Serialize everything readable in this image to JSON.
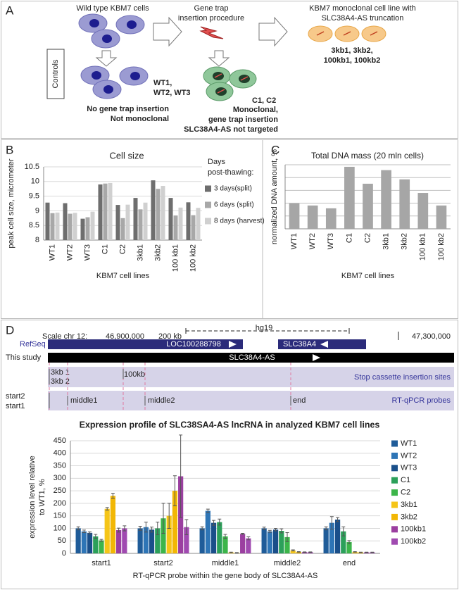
{
  "panel_labels": [
    "A",
    "B",
    "C",
    "D"
  ],
  "diagram": {
    "wild_type": "Wild type KBM7 cells",
    "procedure": [
      "Gene trap",
      "insertion procedure"
    ],
    "truncation": [
      "KBM7 monoclonal cell line with",
      "SLC38A4-AS truncation"
    ],
    "truncation_lines": [
      "3kb1, 3kb2,",
      "100kb1, 100kb2"
    ],
    "controls": "Controls",
    "wt_lines": [
      "WT1,",
      "WT2, WT3"
    ],
    "wt_note": [
      "No gene trap insertion",
      "Not monoclonal"
    ],
    "c_lines": "C1, C2",
    "c_note": [
      "Monoclonal,",
      "gene trap insertion",
      "SLC38A4-AS not targeted"
    ]
  },
  "tracks": {
    "scale": "Scale chr 12:",
    "pos1": "46,900,000",
    "kb": "200 kb",
    "assembly": "hg19",
    "pos2": "47,300,000",
    "refseq": "RefSeq",
    "gene1": "LOC100288798",
    "gene2": "SLC38A4",
    "study": "This study",
    "transcript": "SLC38A4-AS",
    "sites": [
      "3kb 1",
      "3kb 2",
      "100kb"
    ],
    "sites_label": "Stop cassette insertion sites",
    "probes": [
      "start2",
      "start1",
      "middle1",
      "middle2",
      "end"
    ],
    "probes_label": "RT-qPCR probes"
  },
  "chart_data": [
    {
      "type": "bar",
      "title": "Cell size",
      "ylabel": "peak cell size, micrometer",
      "xlabel": "KBM7 cell lines",
      "categories": [
        "WT1",
        "WT2",
        "WT3",
        "C1",
        "C2",
        "3kb1",
        "3kb2",
        "100 kb1",
        "100 kb2"
      ],
      "legend_title": [
        "Days",
        "post-thawing:"
      ],
      "legend": "right",
      "series": [
        {
          "name": "3 days(split)",
          "color": "#6e6e6e",
          "values": [
            9.28,
            9.26,
            8.73,
            9.9,
            9.2,
            9.44,
            10.04,
            9.44,
            9.29
          ]
        },
        {
          "name": "6 days (split)",
          "color": "#a8a8a8",
          "values": [
            8.92,
            8.9,
            8.78,
            9.93,
            8.75,
            9.05,
            9.75,
            8.84,
            8.85
          ]
        },
        {
          "name": "8 days (harvest)",
          "color": "#d0d0d0",
          "values": [
            8.94,
            8.93,
            8.97,
            9.95,
            9.21,
            9.28,
            9.85,
            9.11,
            9.1
          ]
        }
      ],
      "ylim": [
        8,
        10.5
      ],
      "yticks": [
        8,
        8.5,
        9,
        9.5,
        10,
        10.5
      ],
      "grid": true
    },
    {
      "type": "bar",
      "title": "Total DNA mass (20 mln cells)",
      "ylabel": "normalized DNA amount, %",
      "xlabel": "KBM7 cell lines",
      "categories": [
        "WT1",
        "WT2",
        "WT3",
        "C1",
        "C2",
        "3kb1",
        "3kb2",
        "100 kb1",
        "100 kb2"
      ],
      "values": [
        100,
        91,
        80,
        242,
        176,
        229,
        193,
        140,
        91
      ],
      "color": "#a6a6a6",
      "ylim": [
        0,
        250
      ],
      "ygrid": [
        50,
        100,
        150,
        200,
        250
      ],
      "grid": true
    },
    {
      "type": "bar",
      "title": "Expression profile of SLC38SA4-AS lncRNA in analyzed KBM7 cell lines",
      "ylabel": [
        "expression level relative",
        "to WT1, %"
      ],
      "xlabel": "RT-qPCR probe within the gene body of SLC38A4-AS",
      "categories": [
        "start1",
        "start2",
        "middle1",
        "middle2",
        "end"
      ],
      "legend": "right",
      "series": [
        {
          "name": "WT1",
          "color": "#1f5c99",
          "values": [
            100,
            100,
            100,
            100,
            100
          ],
          "errors": [
            6,
            8,
            6,
            5,
            6
          ]
        },
        {
          "name": "WT2",
          "color": "#2e75b6",
          "values": [
            88,
            105,
            170,
            88,
            122
          ],
          "errors": [
            5,
            20,
            7,
            4,
            25
          ]
        },
        {
          "name": "WT3",
          "color": "#1a4f8a",
          "values": [
            82,
            95,
            122,
            95,
            135
          ],
          "errors": [
            4,
            10,
            10,
            5,
            8
          ]
        },
        {
          "name": "C1",
          "color": "#2ca05a",
          "values": [
            68,
            100,
            125,
            90,
            88
          ],
          "errors": [
            8,
            25,
            12,
            8,
            18
          ]
        },
        {
          "name": "C2",
          "color": "#3cb54a",
          "values": [
            52,
            140,
            68,
            65,
            45
          ],
          "errors": [
            4,
            60,
            8,
            18,
            6
          ]
        },
        {
          "name": "3kb1",
          "color": "#f5c518",
          "values": [
            178,
            150,
            4,
            12,
            6
          ],
          "errors": [
            5,
            50,
            1,
            2,
            1
          ]
        },
        {
          "name": "3kb2",
          "color": "#f2b705",
          "values": [
            230,
            250,
            2,
            6,
            4
          ],
          "errors": [
            10,
            60,
            1,
            1,
            1
          ]
        },
        {
          "name": "100kb1",
          "color": "#9b3fa0",
          "values": [
            93,
            308,
            78,
            5,
            4
          ],
          "errors": [
            8,
            165,
            2,
            1,
            1
          ]
        },
        {
          "name": "100kb2",
          "color": "#a04ab0",
          "values": [
            100,
            105,
            60,
            5,
            4
          ],
          "errors": [
            10,
            30,
            6,
            1,
            1
          ]
        }
      ],
      "ylim": [
        0,
        450
      ],
      "yticks": [
        0,
        50,
        100,
        150,
        200,
        250,
        300,
        350,
        400,
        450
      ],
      "grid": true
    }
  ]
}
